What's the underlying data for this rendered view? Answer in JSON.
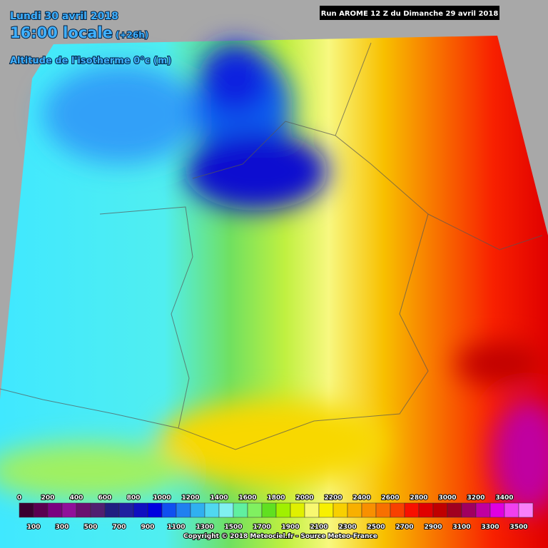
{
  "header": {
    "date": "Lundi 30 avril 2018",
    "time": "16:00 locale",
    "offset": "(+26h)",
    "parameter": "Altitude de l'isotherme 0°c (m)",
    "run": "Run AROME 12 Z du Dimanche 29 avril 2018"
  },
  "legend": {
    "values": [
      0,
      100,
      200,
      300,
      400,
      500,
      600,
      700,
      800,
      900,
      1000,
      1100,
      1200,
      1300,
      1400,
      1500,
      1600,
      1700,
      1800,
      1900,
      2000,
      2100,
      2200,
      2300,
      2400,
      2500,
      2600,
      2700,
      2800,
      2900,
      3000,
      3100,
      3200,
      3300,
      3400,
      3500
    ],
    "colors": [
      "#3a0030",
      "#5a0050",
      "#7a0080",
      "#90109a",
      "#6a1070",
      "#502070",
      "#202080",
      "#2020a0",
      "#1010c0",
      "#0000e0",
      "#1050f0",
      "#2080f0",
      "#30b0f0",
      "#50d8f0",
      "#80f0f0",
      "#60f0a0",
      "#80f060",
      "#60e020",
      "#a0f000",
      "#e0f000",
      "#f8f870",
      "#f8f000",
      "#f8d000",
      "#f8b000",
      "#f89000",
      "#f87000",
      "#f84000",
      "#f81000",
      "#e00000",
      "#c00000",
      "#a00020",
      "#a00060",
      "#c000a0",
      "#e000e0",
      "#f040f0",
      "#f880f8"
    ]
  },
  "footer": {
    "copyright": "Copyright © 2018 Meteociel.fr - Source Meteo-France"
  }
}
